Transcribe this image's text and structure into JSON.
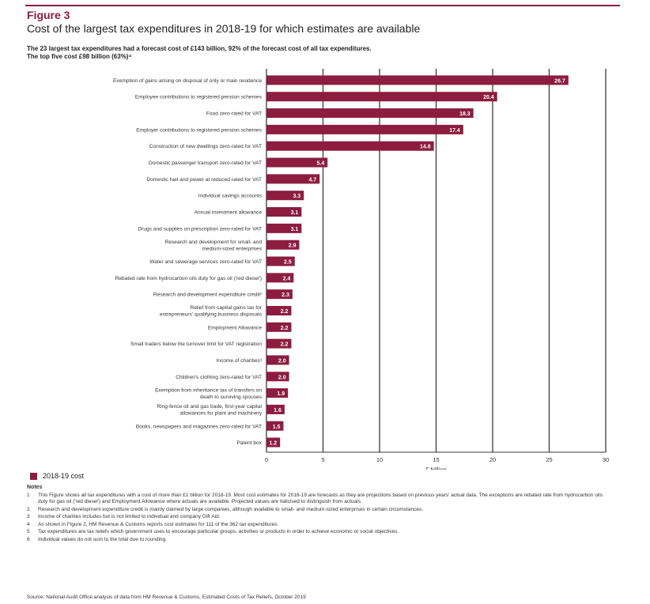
{
  "figure_label": "Figure 3",
  "title": "Cost of the largest tax expenditures in 2018-19 for which estimates are available",
  "subtitle_lines": [
    "The 23 largest tax expenditures had a forecast cost of £143 billion, 92% of the forecast cost of all tax expenditures.",
    "The top five cost £98 billion (63%)⁴"
  ],
  "legend_label": "2018-19 cost",
  "notes": {
    "heading": "Notes",
    "items": [
      {
        "num": "1",
        "text": "This Figure shows all tax expenditures with a cost of more than £1 billion for 2018-19. Most cost estimates for 2018-19 are forecasts as they are projections based on previous years' actual data. The exceptions are rebated rate from hydrocarbon oils duty for gas oil ('red diesel') and Employment Allowance where actuals are available. Projected values are italicised to distinguish from actuals."
      },
      {
        "num": "2",
        "text": "Research and development expenditure credit is mainly claimed by large companies, although available to small- and medium-sized enterprises in certain circumstances."
      },
      {
        "num": "3",
        "text": "Income of charities includes but is not limited to individual and company Gift Aid."
      },
      {
        "num": "4",
        "text": "As shown in Figure 2, HM Revenue & Customs reports cost estimates for 111 of the 362 tax expenditures."
      },
      {
        "num": "5",
        "text": "Tax expenditures are tax reliefs which government uses to encourage particular groups, activities or products in order to achieve economic or social objectives."
      },
      {
        "num": "6",
        "text": "Individual values do not sum to the total due to rounding."
      }
    ]
  },
  "source": "Source: National Audit Office analysis of data from HM Revenue & Customs, Estimated Costs of Tax Reliefs, October 2019",
  "colors": {
    "bar": "#8c1d40",
    "grid": "#3a3a3a",
    "accent": "#8c1d40"
  },
  "chart_data": {
    "type": "bar",
    "orientation": "horizontal",
    "xlabel": "£ billion",
    "xlim": [
      0,
      30
    ],
    "xticks": [
      0,
      5,
      10,
      15,
      20,
      25,
      30
    ],
    "grid": true,
    "legend_position": "bottom-left",
    "series": [
      {
        "name": "2018-19 cost",
        "values": [
          26.7,
          20.4,
          18.3,
          17.4,
          14.8,
          5.4,
          4.7,
          3.3,
          3.1,
          3.1,
          2.9,
          2.5,
          2.4,
          2.3,
          2.2,
          2.2,
          2.2,
          2.0,
          2.0,
          1.9,
          1.6,
          1.5,
          1.2
        ]
      }
    ],
    "categories": [
      [
        "Exemption of gains arising on disposal of only or main residence"
      ],
      [
        "Employee contributions to registered pension schemes"
      ],
      [
        "Food zero-rated for VAT"
      ],
      [
        "Employer contributions to registered pension schemes"
      ],
      [
        "Construction of new dwellings zero-rated for VAT"
      ],
      [
        "Domestic passenger transport zero-rated for VAT"
      ],
      [
        "Domestic fuel and power at reduced rated for VAT"
      ],
      [
        "Individual savings accounts"
      ],
      [
        "Annual investment allowance"
      ],
      [
        "Drugs and supplies on prescription zero-rated for VAT"
      ],
      [
        "Research and development for small- and",
        "medium-sized enterprises"
      ],
      [
        "Water and sewerage services zero-rated for VAT"
      ],
      [
        "Rebated rate from hydrocarbon oils duty for gas oil ('red diesel')"
      ],
      [
        "Research and development expenditure credit²"
      ],
      [
        "Relief from capital gains tax for",
        "entrepreneurs' qualifying business disposals"
      ],
      [
        "Employment Allowance"
      ],
      [
        "Small traders below the turnover limit for VAT registration"
      ],
      [
        "Income of charities³"
      ],
      [
        "Children's clothing zero-rated for VAT"
      ],
      [
        "Exemption from inheritance tax of transfers on",
        "death to surviving spouses"
      ],
      [
        "Ring-fence oil and gas trade, first-year capital",
        "allowances for plant and machinery"
      ],
      [
        "Books, newspapers and magazines zero-rated for VAT"
      ],
      [
        "Patent box"
      ]
    ],
    "value_labels": [
      "26.7",
      "20.4",
      "18.3",
      "17.4",
      "14.8",
      "5.4",
      "4.7",
      "3.3",
      "3.1",
      "3.1",
      "2.9",
      "2.5",
      "2.4",
      "2.3",
      "2.2",
      "2.2",
      "2.2",
      "2.0",
      "2.0",
      "1.9",
      "1.6",
      "1.5",
      "1.2"
    ]
  }
}
